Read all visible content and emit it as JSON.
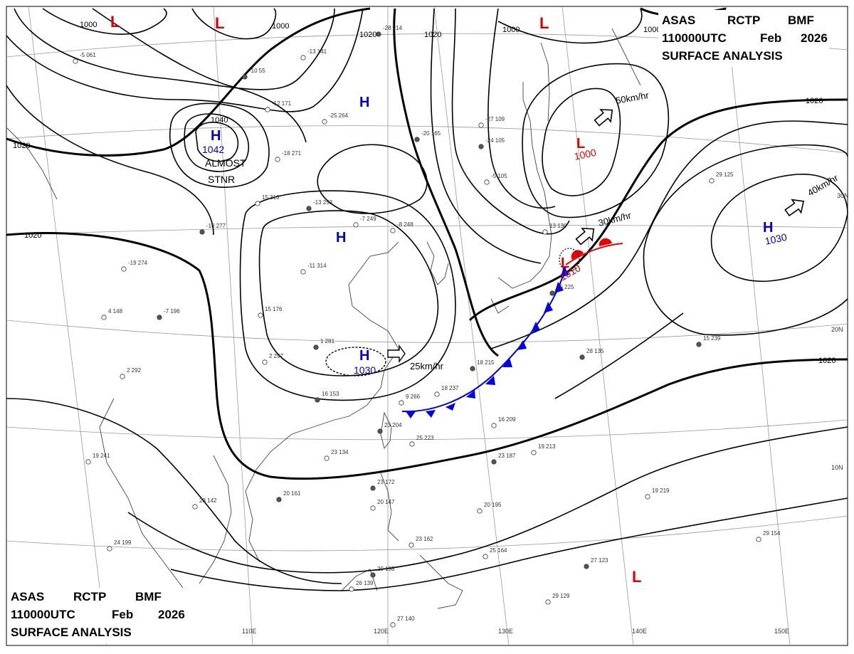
{
  "header": {
    "line1": [
      "ASAS",
      "RCTP",
      "BMF"
    ],
    "line2": [
      "110000UTC",
      "Feb",
      "2026"
    ],
    "line3": "SURFACE ANALYSIS"
  },
  "colors": {
    "high": "#0000cc",
    "low": "#dd0000",
    "cold_front": "#0000ee",
    "warm_front": "#ee0000",
    "isobar": "#000000",
    "grid": "#999999",
    "coast": "#444444"
  },
  "longitude_labels": [
    "110E",
    "120E",
    "130E",
    "140E",
    "150E"
  ],
  "latitude_labels": [
    "30N",
    "20N",
    "10N"
  ],
  "isobar_labels": [
    "1000",
    "1000",
    "1000",
    "1020",
    "1020",
    "1040",
    "1000",
    "1020",
    "1020",
    "1020",
    "1020"
  ],
  "pressure_centers": [
    {
      "type": "L",
      "value": ""
    },
    {
      "type": "L",
      "value": ""
    },
    {
      "type": "L",
      "value": ""
    },
    {
      "type": "H",
      "value": "1042"
    },
    {
      "type": "H",
      "value": ""
    },
    {
      "type": "L",
      "value": "1000"
    },
    {
      "type": "H",
      "value": ""
    },
    {
      "type": "H",
      "value": "1030"
    },
    {
      "type": "L",
      "value": "1010"
    },
    {
      "type": "H",
      "value": "1030"
    },
    {
      "type": "L",
      "value": ""
    }
  ],
  "annotations": {
    "stnr_line1": "ALMOST",
    "stnr_line2": "STNR"
  },
  "motion_vectors": [
    {
      "speed": "50km/hr"
    },
    {
      "speed": "40km/hr"
    },
    {
      "speed": "30km/hr"
    },
    {
      "speed": "25km/hr"
    }
  ],
  "station_samples": [
    "-28 214",
    "-5 061",
    "-13 141",
    "-10 55",
    "-12 171",
    "-25 264",
    "-20 165",
    "-18 271",
    "15 316",
    "-13 253",
    "-7 249",
    "-8 248",
    "-10 277",
    "-19 274",
    "-11 314",
    "-7 196",
    "4 148",
    "15 176",
    "1 281",
    "2 297",
    "2 292",
    "16 153",
    "9 266",
    "18 237",
    "18 215",
    "16 209",
    "19 213",
    "23 187",
    "20 195",
    "25 164",
    "29 198",
    "26 139",
    "27 140",
    "28 135",
    "19 219",
    "29 154",
    "27 123",
    "29 129",
    "29 125",
    "15 239",
    "19 241",
    "23 142",
    "20 161",
    "24 199",
    "23 134",
    "23 204",
    "25 223",
    "20 147",
    "23 172",
    "23 162",
    "-27 109",
    "-24 105",
    "-5 105",
    "13 130",
    "25 225"
  ]
}
